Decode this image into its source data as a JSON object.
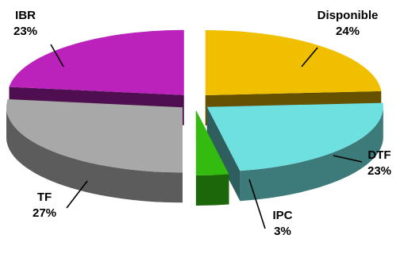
{
  "chart_data": {
    "type": "pie",
    "style": "3d-exploded",
    "title": "",
    "legend": "none",
    "slices": [
      {
        "label": "Disponible",
        "percent_label": "24%",
        "value": 24,
        "color": "#f0c000"
      },
      {
        "label": "DTF",
        "percent_label": "23%",
        "value": 23,
        "color": "#6fe0e0"
      },
      {
        "label": "IPC",
        "percent_label": "3%",
        "value": 3,
        "color": "#33bb10"
      },
      {
        "label": "TF",
        "percent_label": "27%",
        "value": 27,
        "color": "#a8a8a8"
      },
      {
        "label": "IBR",
        "percent_label": "23%",
        "value": 23,
        "color": "#bb22bb"
      }
    ]
  }
}
